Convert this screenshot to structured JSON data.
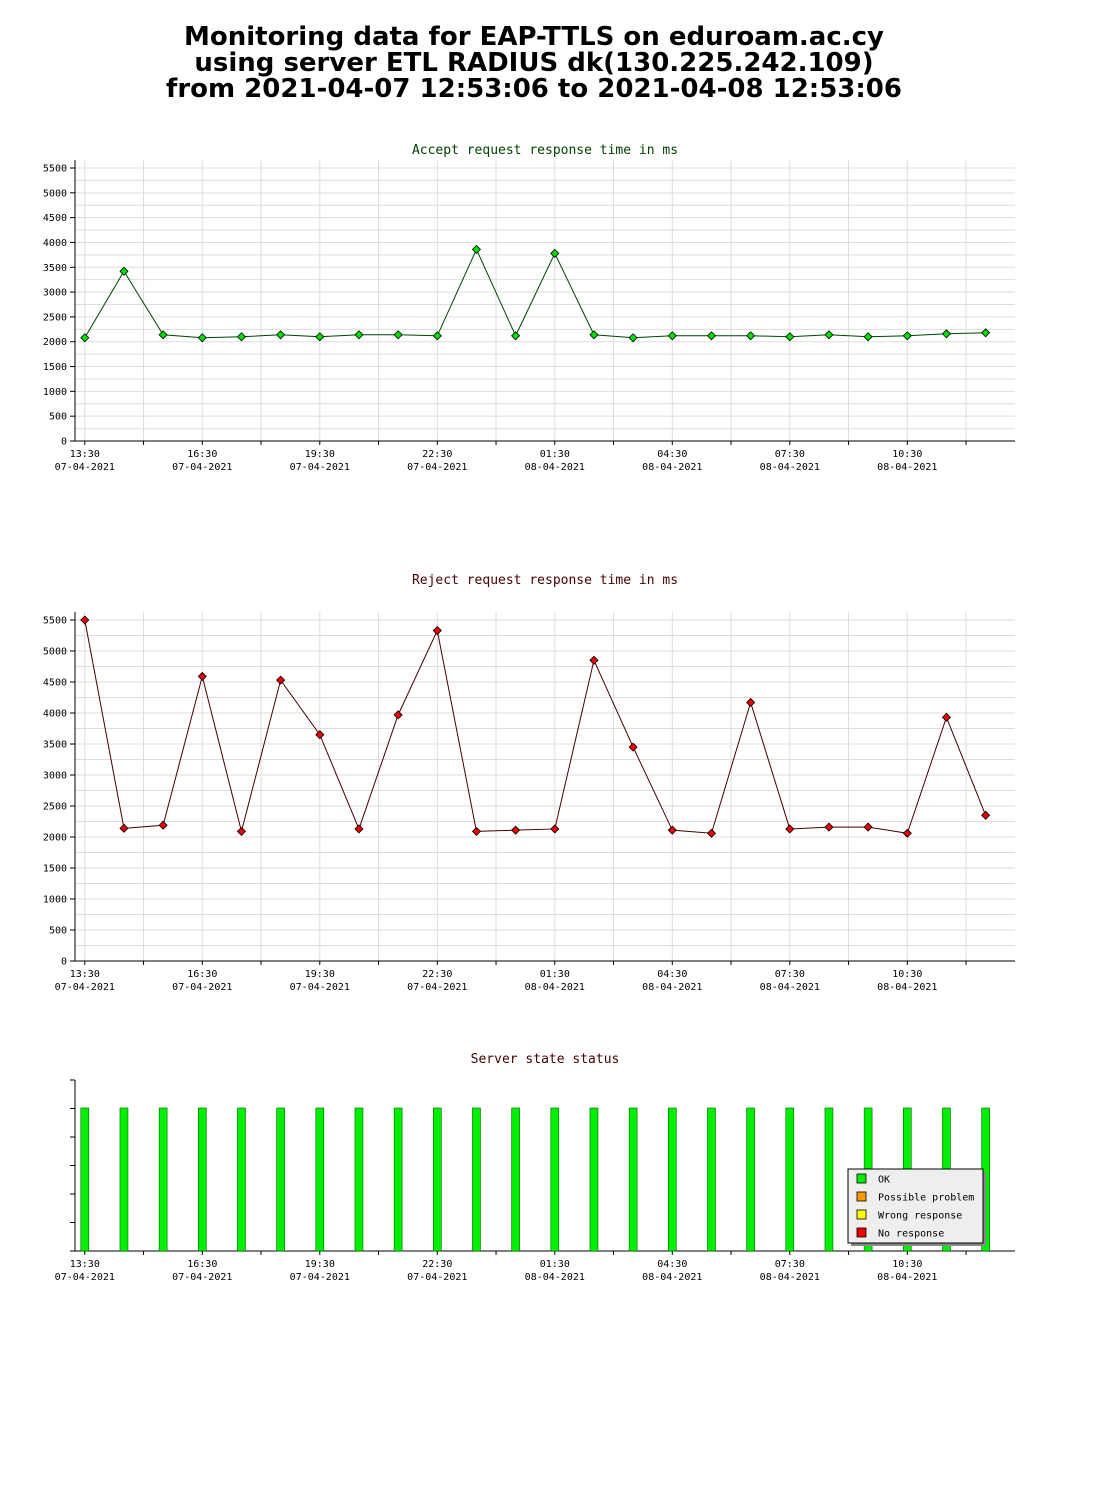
{
  "page": {
    "title_lines": [
      "Monitoring data for EAP-TTLS on eduroam.ac.cy",
      "using server ETL RADIUS dk(130.225.242.109)",
      "from 2021-04-07 12:53:06 to 2021-04-08 12:53:06"
    ]
  },
  "colors": {
    "grid": "#dddddd",
    "axis": "#000000",
    "accept_title": "#004400",
    "reject_title": "#440000",
    "accept_marker": "#00dd00",
    "reject_marker": "#ee0000",
    "accept_line": "#004400",
    "reject_line": "#440000",
    "ok": "#00ee00",
    "possible_problem": "#ff9900",
    "wrong_response": "#ffff00",
    "no_response": "#ee0000"
  },
  "x_ticks": [
    {
      "time": "13:30",
      "date": "07-04-2021"
    },
    {
      "time": "16:30",
      "date": "07-04-2021"
    },
    {
      "time": "19:30",
      "date": "07-04-2021"
    },
    {
      "time": "22:30",
      "date": "07-04-2021"
    },
    {
      "time": "01:30",
      "date": "08-04-2021"
    },
    {
      "time": "04:30",
      "date": "08-04-2021"
    },
    {
      "time": "07:30",
      "date": "08-04-2021"
    },
    {
      "time": "10:30",
      "date": "08-04-2021"
    }
  ],
  "chart_data": [
    {
      "id": "accept",
      "type": "line",
      "title": "Accept request response time in ms",
      "ylim": [
        0,
        5500
      ],
      "yticks": [
        0,
        500,
        1000,
        1500,
        2000,
        2500,
        3000,
        3500,
        4000,
        4500,
        5000,
        5500
      ],
      "x_range": [
        "2021-04-07 13:15",
        "2021-04-08 13:15"
      ],
      "x": [
        "13:30",
        "14:30",
        "15:30",
        "16:30",
        "17:30",
        "18:30",
        "19:30",
        "20:30",
        "21:30",
        "22:30",
        "23:30",
        "00:30",
        "01:30",
        "02:30",
        "03:30",
        "04:30",
        "05:30",
        "06:30",
        "07:30",
        "08:30",
        "09:30",
        "10:30",
        "11:30",
        "12:30"
      ],
      "values": [
        2080,
        3420,
        2140,
        2080,
        2100,
        2140,
        2100,
        2140,
        2140,
        2120,
        3860,
        2120,
        3780,
        2140,
        2080,
        2120,
        2120,
        2120,
        2100,
        2140,
        2100,
        2120,
        2160,
        2180
      ],
      "grid": true
    },
    {
      "id": "reject",
      "type": "line",
      "title": "Reject request response time in ms",
      "ylim": [
        0,
        5500
      ],
      "yticks": [
        0,
        500,
        1000,
        1500,
        2000,
        2500,
        3000,
        3500,
        4000,
        4500,
        5000,
        5500
      ],
      "x_range": [
        "2021-04-07 13:15",
        "2021-04-08 13:15"
      ],
      "x": [
        "13:30",
        "14:30",
        "15:30",
        "16:30",
        "17:30",
        "18:30",
        "19:30",
        "20:30",
        "21:30",
        "22:30",
        "23:30",
        "00:30",
        "01:30",
        "02:30",
        "03:30",
        "04:30",
        "05:30",
        "06:30",
        "07:30",
        "08:30",
        "09:30",
        "10:30",
        "11:30",
        "12:30"
      ],
      "values": [
        5500,
        2140,
        2190,
        4590,
        2090,
        4530,
        3650,
        2130,
        3970,
        5330,
        2090,
        2110,
        2130,
        4850,
        3450,
        2110,
        2060,
        4170,
        2130,
        2160,
        2160,
        2060,
        3930,
        2350
      ],
      "grid": true
    },
    {
      "id": "state",
      "type": "bar",
      "title": "Server state status",
      "x_range": [
        "2021-04-07 13:15",
        "2021-04-08 13:15"
      ],
      "x": [
        "13:30",
        "14:30",
        "15:30",
        "16:30",
        "17:30",
        "18:30",
        "19:30",
        "20:30",
        "21:30",
        "22:30",
        "23:30",
        "00:30",
        "01:30",
        "02:30",
        "03:30",
        "04:30",
        "05:30",
        "06:30",
        "07:30",
        "08:30",
        "09:30",
        "10:30",
        "11:30",
        "12:30"
      ],
      "states": [
        "OK",
        "OK",
        "OK",
        "OK",
        "OK",
        "OK",
        "OK",
        "OK",
        "OK",
        "OK",
        "OK",
        "OK",
        "OK",
        "OK",
        "OK",
        "OK",
        "OK",
        "OK",
        "OK",
        "OK",
        "OK",
        "OK",
        "OK",
        "OK"
      ],
      "legend": [
        "OK",
        "Possible problem",
        "Wrong response",
        "No response"
      ],
      "legend_position": "bottom-right"
    }
  ]
}
